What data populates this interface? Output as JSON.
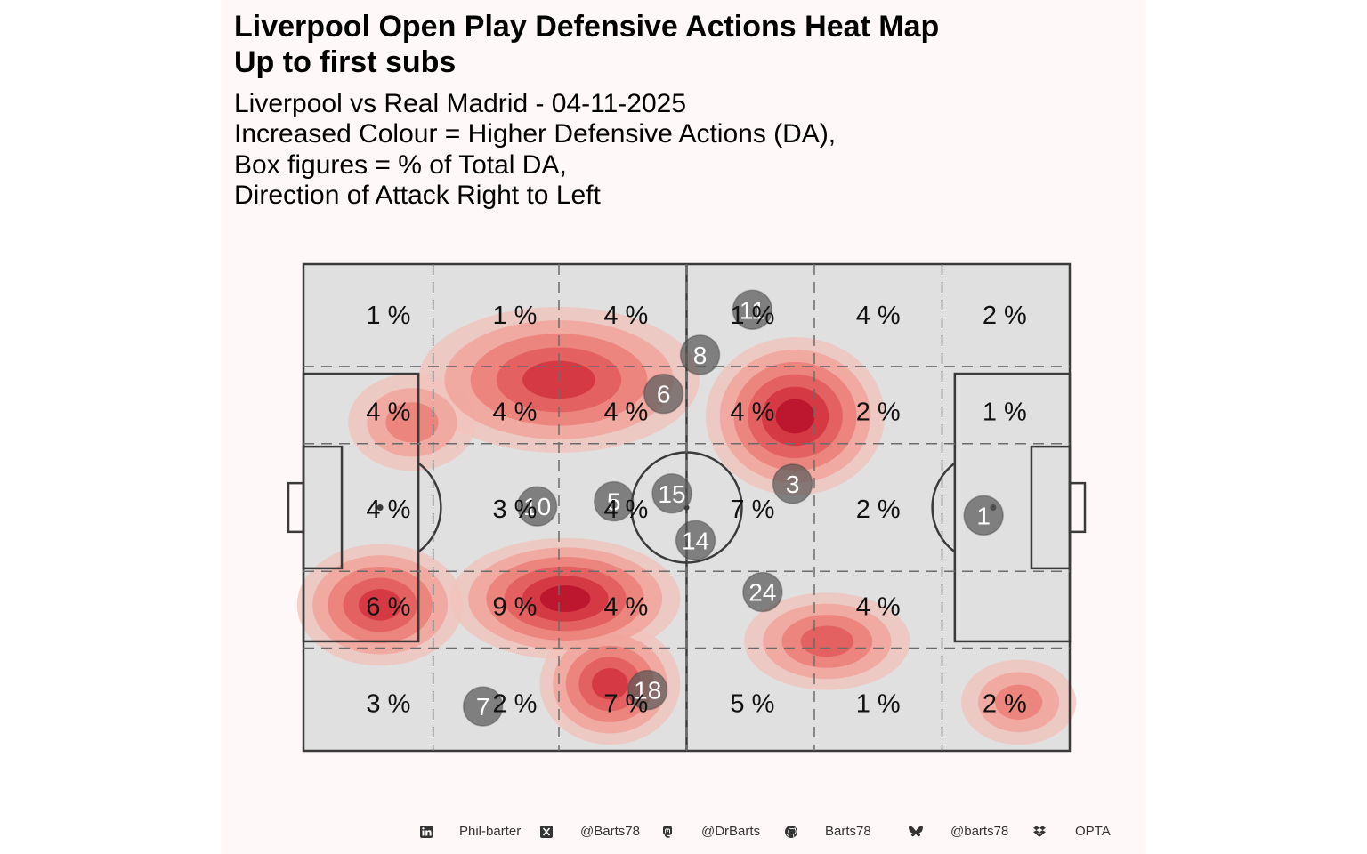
{
  "title_line1": "Liverpool Open Play Defensive Actions Heat Map",
  "title_line2": "Up to first subs",
  "subtitle_lines": [
    "Liverpool vs Real Madrid - 04-11-2025",
    "Increased Colour = Higher Defensive Actions (DA),",
    "Box figures = % of Total DA,",
    "Direction of Attack Right to Left"
  ],
  "chart_data": {
    "type": "heatmap",
    "x_range": [
      0,
      120
    ],
    "y_range": [
      0,
      80
    ],
    "zone_grid": {
      "rows": [
        [
          "1 %",
          "1 %",
          "4 %",
          "1 %",
          "4 %",
          "2 %"
        ],
        [
          "4 %",
          "4 %",
          "4 %",
          "4 %",
          "2 %",
          "1 %"
        ],
        [
          "4 %",
          "3 %",
          "4 %",
          "7 %",
          "2 %",
          ""
        ],
        [
          "6 %",
          "9 %",
          "4 %",
          "",
          "4 %",
          ""
        ],
        [
          "3 %",
          "2 %",
          "7 %",
          "5 %",
          "1 %",
          "2 %"
        ]
      ]
    },
    "players": [
      {
        "number": "1",
        "x": 106.5,
        "y": 41.3
      },
      {
        "number": "3",
        "x": 76.6,
        "y": 36.1
      },
      {
        "number": "6",
        "x": 56.4,
        "y": 21.3
      },
      {
        "number": "8",
        "x": 62.1,
        "y": 14.9
      },
      {
        "number": "11",
        "x": 70.3,
        "y": 7.5
      },
      {
        "number": "15",
        "x": 57.7,
        "y": 37.7
      },
      {
        "number": "5",
        "x": 48.6,
        "y": 39.0
      },
      {
        "number": "10",
        "x": 36.6,
        "y": 39.8
      },
      {
        "number": "14",
        "x": 61.4,
        "y": 45.4
      },
      {
        "number": "24",
        "x": 71.9,
        "y": 53.9
      },
      {
        "number": "18",
        "x": 53.9,
        "y": 70.0
      },
      {
        "number": "7",
        "x": 28.1,
        "y": 72.7
      }
    ],
    "density_blobs": [
      {
        "x": 40,
        "y": 19,
        "rx": 18,
        "ry": 8,
        "level": 4
      },
      {
        "x": 77,
        "y": 25,
        "rx": 10,
        "ry": 9,
        "level": 5
      },
      {
        "x": 12,
        "y": 56,
        "rx": 9,
        "ry": 6,
        "level": 4
      },
      {
        "x": 41,
        "y": 55,
        "rx": 14,
        "ry": 6,
        "level": 5
      },
      {
        "x": 48,
        "y": 69,
        "rx": 7,
        "ry": 6,
        "level": 4
      },
      {
        "x": 82,
        "y": 62,
        "rx": 9,
        "ry": 4,
        "level": 3
      },
      {
        "x": 112,
        "y": 72,
        "rx": 5,
        "ry": 3,
        "level": 2
      },
      {
        "x": 17,
        "y": 26,
        "rx": 6,
        "ry": 4,
        "level": 2
      }
    ],
    "colors": {
      "pitch": "#e0e0e0",
      "density_light": "#f1b7b1",
      "density_dark": "#b8112c",
      "player_marker": "#555555"
    }
  },
  "footer": {
    "linkedin": "Phil-barter",
    "x": "@Barts78",
    "mastodon": "@DrBarts",
    "github": "Barts78",
    "bluesky": "@barts78",
    "source": "OPTA"
  }
}
